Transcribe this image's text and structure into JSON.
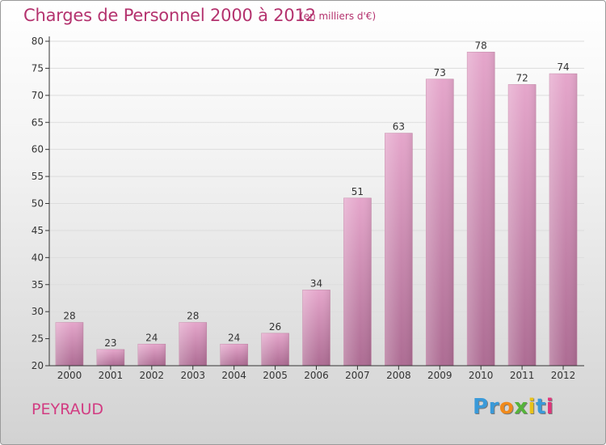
{
  "header": {
    "title": "Charges de Personnel 2000 à 2012",
    "subtitle": "(en milliers d'€)"
  },
  "footer": {
    "location": "PEYRAUD",
    "brand_letters": [
      {
        "ch": "P",
        "color": "#3a9ad9"
      },
      {
        "ch": "r",
        "color": "#3a9ad9"
      },
      {
        "ch": "o",
        "color": "#f08a1c"
      },
      {
        "ch": "x",
        "color": "#55b33a"
      },
      {
        "ch": "i",
        "color": "#e8c21a"
      },
      {
        "ch": "t",
        "color": "#3a9ad9"
      },
      {
        "ch": "i",
        "color": "#e0357a"
      }
    ]
  },
  "colors": {
    "title": "#b4326e",
    "bar_top": "#e5a6cb",
    "bar_bottom": "#ad6c93",
    "axis": "#333333",
    "grid": "#dddddd"
  },
  "chart_data": {
    "type": "bar",
    "title": "Charges de Personnel 2000 à 2012",
    "xlabel": "",
    "ylabel": "",
    "categories": [
      "2000",
      "2001",
      "2002",
      "2003",
      "2004",
      "2005",
      "2006",
      "2007",
      "2008",
      "2009",
      "2010",
      "2011",
      "2012"
    ],
    "values": [
      28,
      23,
      24,
      28,
      24,
      26,
      34,
      51,
      63,
      73,
      78,
      72,
      74
    ],
    "ylim": [
      20,
      80
    ],
    "yticks": [
      20,
      25,
      30,
      35,
      40,
      45,
      50,
      55,
      60,
      65,
      70,
      75,
      80
    ],
    "grid": true,
    "data_labels": true
  }
}
